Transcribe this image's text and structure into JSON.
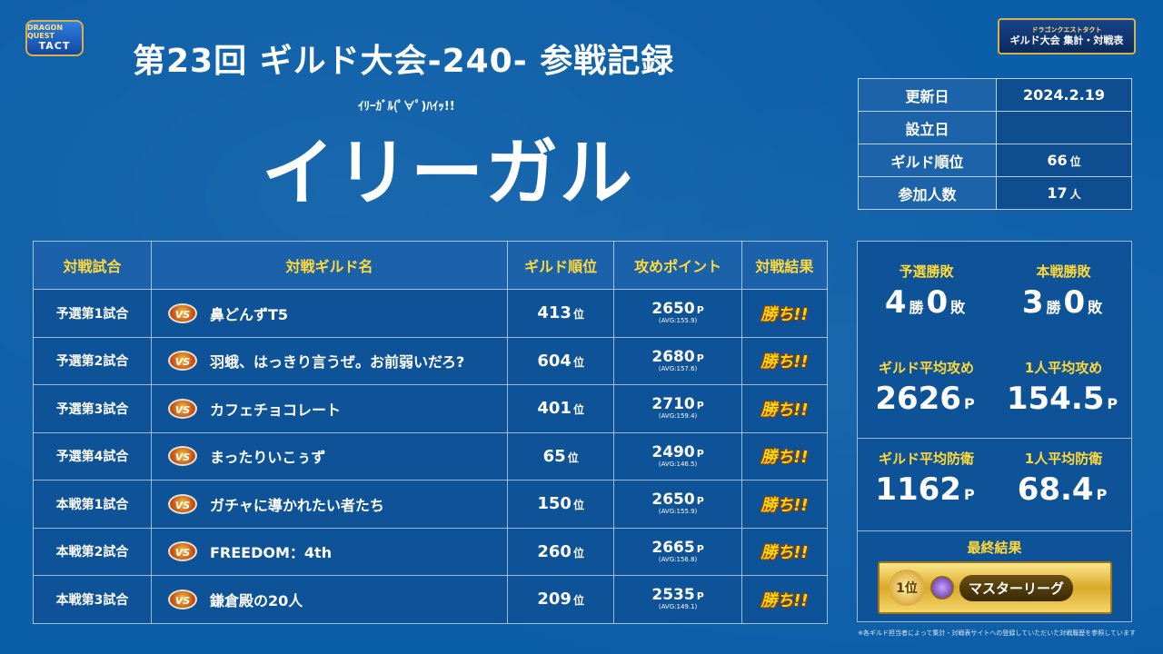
{
  "logos": {
    "left_small": "DRAGON QUEST",
    "left_big": "TACT",
    "right_small": "ドラゴンクエストタクト",
    "right_main": "ギルド大会 集計・対戦表"
  },
  "title": "第23回  ギルド大会-240-  参戦記録",
  "subtitle": "ｲﾘｰｶﾞﾙ(ﾟ∀ﾟ)ﾊｲｯ!!",
  "guild_name": "イリーガル",
  "info": {
    "updated_label": "更新日",
    "updated_value": "2024.2.19",
    "founded_label": "設立日",
    "founded_value": "",
    "rank_label": "ギルド順位",
    "rank_value": "66",
    "rank_unit": "位",
    "members_label": "参加人数",
    "members_value": "17",
    "members_unit": "人"
  },
  "table": {
    "headers": [
      "対戦試合",
      "対戦ギルド名",
      "ギルド順位",
      "攻めポイント",
      "対戦結果"
    ],
    "rank_unit": "位",
    "pts_unit": "P",
    "vs_label": "VS",
    "rows": [
      {
        "match": "予選第1試合",
        "opponent": "鼻どんずT5",
        "rank": "413",
        "points": "2650",
        "avg": "(AVG:155.9)",
        "result": "勝ち!!"
      },
      {
        "match": "予選第2試合",
        "opponent": "羽蛾、はっきり言うぜ。お前弱いだろ?",
        "rank": "604",
        "points": "2680",
        "avg": "(AVG:157.6)",
        "result": "勝ち!!"
      },
      {
        "match": "予選第3試合",
        "opponent": "カフェチョコレート",
        "rank": "401",
        "points": "2710",
        "avg": "(AVG:159.4)",
        "result": "勝ち!!"
      },
      {
        "match": "予選第4試合",
        "opponent": "まったりいこぅず",
        "rank": "65",
        "points": "2490",
        "avg": "(AVG:146.5)",
        "result": "勝ち!!"
      },
      {
        "match": "本戦第1試合",
        "opponent": "ガチャに導かれたい者たち",
        "rank": "150",
        "points": "2650",
        "avg": "(AVG:155.9)",
        "result": "勝ち!!"
      },
      {
        "match": "本戦第2試合",
        "opponent": "FREEDOM：4th",
        "rank": "260",
        "points": "2665",
        "avg": "(AVG:156.8)",
        "result": "勝ち!!"
      },
      {
        "match": "本戦第3試合",
        "opponent": "鎌倉殿の20人",
        "rank": "209",
        "points": "2535",
        "avg": "(AVG:149.1)",
        "result": "勝ち!!"
      }
    ]
  },
  "summary": {
    "prelim_label": "予選勝敗",
    "prelim_wins": "4",
    "prelim_losses": "0",
    "main_label": "本戦勝敗",
    "main_wins": "3",
    "main_losses": "0",
    "win_unit": "勝",
    "loss_unit": "敗",
    "avg_atk_label": "ギルド平均攻め",
    "avg_atk_value": "2626",
    "per_atk_label": "1人平均攻め",
    "per_atk_value": "154.5",
    "avg_def_label": "ギルド平均防衛",
    "avg_def_value": "1162",
    "per_def_label": "1人平均防衛",
    "per_def_value": "68.4",
    "pts_unit": "P",
    "final_label": "最終結果",
    "final_rank": "1位",
    "final_league": "マスターリーグ"
  },
  "footnote": "※各ギルド担当者によって集計・対戦表サイトへの登録していただいた対戦履歴を参照しています"
}
